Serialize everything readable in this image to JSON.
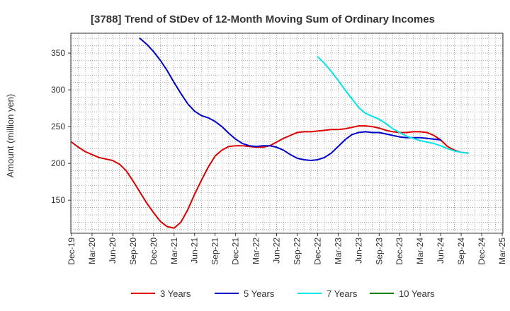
{
  "chart_data": {
    "type": "line",
    "title": "[3788]  Trend of StDev of 12-Month Moving Sum of Ordinary Incomes",
    "xlabel": "",
    "ylabel": "Amount (million yen)",
    "ylim": [
      105,
      377
    ],
    "yticks": [
      150,
      200,
      250,
      300,
      350
    ],
    "grid": true,
    "legend_position": "bottom",
    "x_tick_labels": [
      "Dec-19",
      "Mar-20",
      "Jun-20",
      "Sep-20",
      "Dec-20",
      "Mar-21",
      "Jun-21",
      "Sep-21",
      "Dec-21",
      "Mar-22",
      "Jun-22",
      "Sep-22",
      "Dec-22",
      "Mar-23",
      "Jun-23",
      "Sep-23",
      "Dec-23",
      "Mar-24",
      "Jun-24",
      "Sep-24",
      "Dec-24",
      "Mar-25"
    ],
    "series": [
      {
        "name": "3 Years",
        "color": "#dd0000",
        "start_index": 0,
        "values": [
          229,
          222,
          216,
          212,
          208,
          206,
          204,
          199,
          190,
          176,
          161,
          146,
          133,
          121,
          114,
          112,
          120,
          137,
          158,
          177,
          195,
          210,
          218,
          223,
          224,
          224,
          223,
          222,
          222,
          224,
          229,
          234,
          238,
          242,
          243,
          243,
          244,
          245,
          246,
          246,
          247,
          249,
          251,
          251,
          250,
          248,
          245,
          243,
          242,
          242,
          243,
          243,
          242,
          238,
          232,
          223,
          218,
          215,
          214
        ]
      },
      {
        "name": "5 Years",
        "color": "#0000cc",
        "start_index": 10,
        "values": [
          370,
          362,
          352,
          340,
          326,
          310,
          295,
          281,
          271,
          265,
          262,
          257,
          250,
          241,
          233,
          227,
          224,
          223,
          224,
          224,
          222,
          218,
          212,
          207,
          205,
          204,
          205,
          208,
          214,
          223,
          232,
          239,
          242,
          243,
          242,
          242,
          240,
          238,
          236,
          235,
          235,
          235,
          234,
          233,
          232
        ]
      },
      {
        "name": "7 Years",
        "color": "#00e5e5",
        "start_index": 36,
        "values": [
          345,
          336,
          325,
          313,
          300,
          288,
          276,
          268,
          264,
          260,
          254,
          247,
          242,
          237,
          234,
          231,
          229,
          227,
          224,
          220,
          217,
          215,
          214
        ]
      },
      {
        "name": "10 Years",
        "color": "#008000",
        "start_index": 0,
        "values": []
      }
    ]
  }
}
